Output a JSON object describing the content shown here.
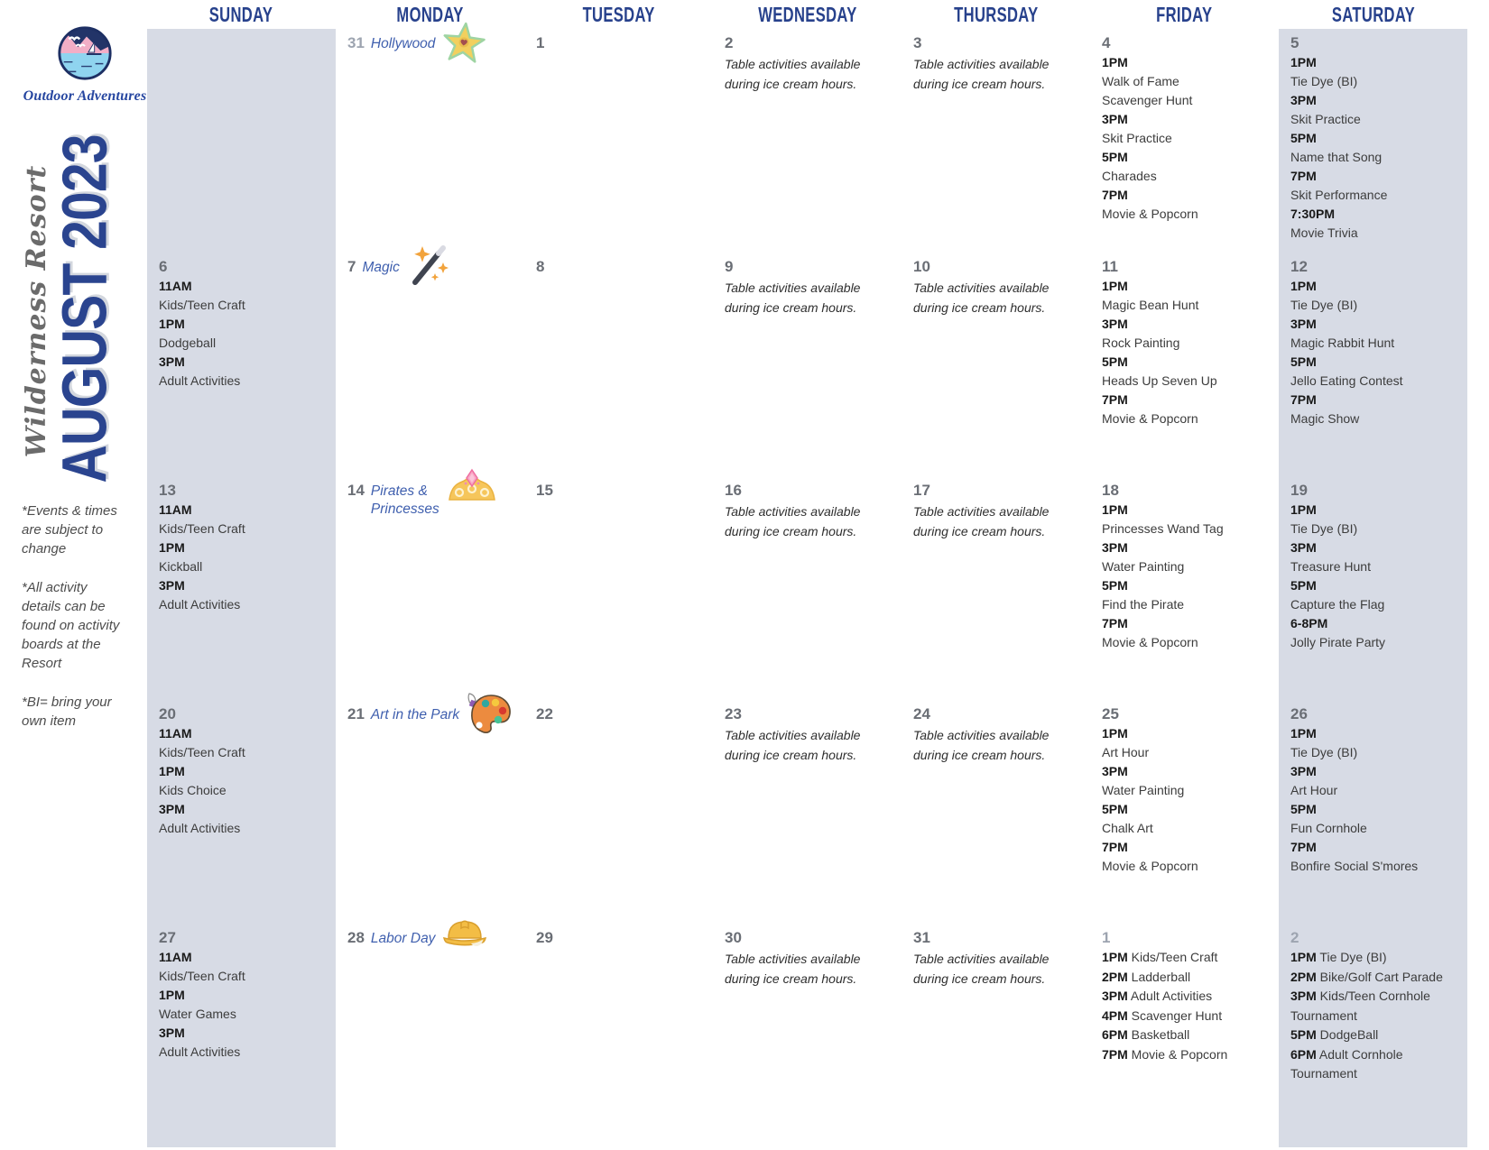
{
  "branding": {
    "logo_caption": "Outdoor Adventures",
    "resort_name": "Wilderness Resort",
    "month_title": "AUGUST 2023"
  },
  "sidebar_notes": [
    "*Events & times are subject to change",
    "*All activity details can be found on activity boards at the Resort",
    "*BI= bring your own item"
  ],
  "calendar": {
    "weekday_headers": [
      "SUNDAY",
      "MONDAY",
      "TUESDAY",
      "WEDNESDAY",
      "THURSDAY",
      "FRIDAY",
      "SATURDAY"
    ],
    "weeks": [
      [
        {
          "day": ""
        },
        {
          "day": "31",
          "muted": true,
          "theme": {
            "label": "Hollywood",
            "icon": "hollywood-star-icon"
          }
        },
        {
          "day": "1"
        },
        {
          "day": "2",
          "note": "Table activities available during ice cream hours."
        },
        {
          "day": "3",
          "note": "Table activities available during ice cream hours."
        },
        {
          "day": "4",
          "events": [
            {
              "time": "1PM",
              "title": "Walk of Fame Scavenger Hunt"
            },
            {
              "time": "3PM",
              "title": "Skit Practice"
            },
            {
              "time": "5PM",
              "title": "Charades"
            },
            {
              "time": "7PM",
              "title": "Movie & Popcorn"
            }
          ]
        },
        {
          "day": "5",
          "events": [
            {
              "time": "1PM",
              "title": "Tie Dye (BI)"
            },
            {
              "time": "3PM",
              "title": "Skit Practice"
            },
            {
              "time": "5PM",
              "title": "Name that Song"
            },
            {
              "time": "7PM",
              "title": "Skit Performance"
            },
            {
              "time": "7:30PM",
              "title": "Movie Trivia"
            }
          ]
        }
      ],
      [
        {
          "day": "6",
          "events": [
            {
              "time": "11AM",
              "title": "Kids/Teen Craft"
            },
            {
              "time": "1PM",
              "title": "Dodgeball"
            },
            {
              "time": "3PM",
              "title": "Adult Activities"
            }
          ]
        },
        {
          "day": "7",
          "theme": {
            "label": "Magic",
            "icon": "magic-wand-icon"
          }
        },
        {
          "day": "8"
        },
        {
          "day": "9",
          "note": "Table activities available during ice cream hours."
        },
        {
          "day": "10",
          "note": "Table activities available during ice cream hours."
        },
        {
          "day": "11",
          "events": [
            {
              "time": "1PM",
              "title": "Magic Bean Hunt"
            },
            {
              "time": "3PM",
              "title": "Rock Painting"
            },
            {
              "time": "5PM",
              "title": "Heads Up Seven Up"
            },
            {
              "time": "7PM",
              "title": "Movie & Popcorn"
            }
          ]
        },
        {
          "day": "12",
          "events": [
            {
              "time": "1PM",
              "title": "Tie Dye (BI)"
            },
            {
              "time": "3PM",
              "title": "Magic Rabbit Hunt"
            },
            {
              "time": "5PM",
              "title": "Jello Eating Contest"
            },
            {
              "time": "7PM",
              "title": "Magic Show"
            }
          ]
        }
      ],
      [
        {
          "day": "13",
          "events": [
            {
              "time": "11AM",
              "title": "Kids/Teen Craft"
            },
            {
              "time": "1PM",
              "title": "Kickball"
            },
            {
              "time": "3PM",
              "title": "Adult Activities"
            }
          ]
        },
        {
          "day": "14",
          "theme": {
            "label": "Pirates &\nPrincesses",
            "icon": "tiara-icon"
          }
        },
        {
          "day": "15"
        },
        {
          "day": "16",
          "note": "Table activities available during ice cream hours."
        },
        {
          "day": "17",
          "note": "Table activities available during ice cream hours."
        },
        {
          "day": "18",
          "events": [
            {
              "time": "1PM",
              "title": "Princesses Wand Tag"
            },
            {
              "time": "3PM",
              "title": "Water Painting"
            },
            {
              "time": "5PM",
              "title": "Find the Pirate"
            },
            {
              "time": "7PM",
              "title": "Movie & Popcorn"
            }
          ]
        },
        {
          "day": "19",
          "events": [
            {
              "time": "1PM",
              "title": "Tie Dye (BI)"
            },
            {
              "time": "3PM",
              "title": "Treasure Hunt"
            },
            {
              "time": "5PM",
              "title": "Capture the Flag"
            },
            {
              "time": "6-8PM",
              "title": "Jolly Pirate Party"
            }
          ]
        }
      ],
      [
        {
          "day": "20",
          "events": [
            {
              "time": "11AM",
              "title": "Kids/Teen Craft"
            },
            {
              "time": "1PM",
              "title": "Kids Choice"
            },
            {
              "time": "3PM",
              "title": "Adult Activities"
            }
          ]
        },
        {
          "day": "21",
          "theme": {
            "label": "Art in the Park",
            "icon": "paint-palette-icon"
          }
        },
        {
          "day": "22"
        },
        {
          "day": "23",
          "note": "Table activities available during ice cream hours."
        },
        {
          "day": "24",
          "note": "Table activities available during ice cream hours."
        },
        {
          "day": "25",
          "events": [
            {
              "time": "1PM",
              "title": "Art Hour"
            },
            {
              "time": "3PM",
              "title": "Water Painting"
            },
            {
              "time": "5PM",
              "title": "Chalk Art"
            },
            {
              "time": "7PM",
              "title": "Movie & Popcorn"
            }
          ]
        },
        {
          "day": "26",
          "events": [
            {
              "time": "1PM",
              "title": "Tie Dye (BI)"
            },
            {
              "time": "3PM",
              "title": "Art Hour"
            },
            {
              "time": "5PM",
              "title": "Fun Cornhole"
            },
            {
              "time": "7PM",
              "title": "Bonfire Social S'mores"
            }
          ]
        }
      ],
      [
        {
          "day": "27",
          "events": [
            {
              "time": "11AM",
              "title": "Kids/Teen Craft"
            },
            {
              "time": "1PM",
              "title": "Water Games"
            },
            {
              "time": "3PM",
              "title": "Adult Activities"
            }
          ]
        },
        {
          "day": "28",
          "theme": {
            "label": "Labor Day",
            "icon": "hard-hat-icon"
          }
        },
        {
          "day": "29"
        },
        {
          "day": "30",
          "note": "Table activities available during ice cream hours."
        },
        {
          "day": "31",
          "note": "Table activities available during ice cream hours."
        },
        {
          "day": "1",
          "muted": true,
          "inline": true,
          "events": [
            {
              "time": "1PM",
              "title": "Kids/Teen Craft"
            },
            {
              "time": "2PM",
              "title": "Ladderball"
            },
            {
              "time": "3PM",
              "title": "Adult Activities"
            },
            {
              "time": "4PM",
              "title": "Scavenger Hunt"
            },
            {
              "time": "6PM",
              "title": "Basketball"
            },
            {
              "time": "7PM",
              "title": "Movie & Popcorn"
            }
          ]
        },
        {
          "day": "2",
          "muted": true,
          "inline": true,
          "events": [
            {
              "time": "1PM",
              "title": "Tie Dye (BI)"
            },
            {
              "time": "2PM",
              "title": "Bike/Golf Cart Parade"
            },
            {
              "time": "3PM",
              "title": "Kids/Teen Cornhole Tournament"
            },
            {
              "time": "5PM",
              "title": "DodgeBall"
            },
            {
              "time": "6PM",
              "title": "Adult Cornhole Tournament"
            }
          ]
        }
      ]
    ]
  }
}
